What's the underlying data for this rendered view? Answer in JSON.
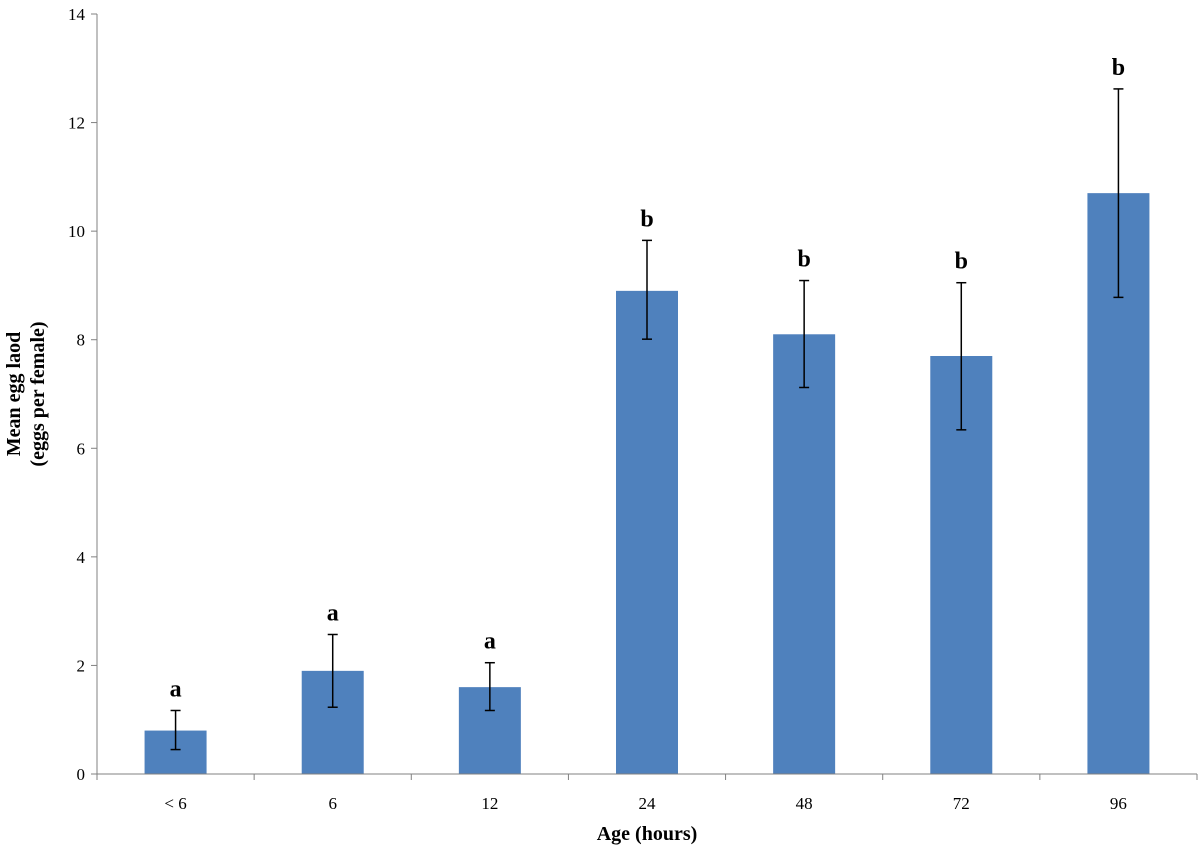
{
  "chart_data": {
    "type": "bar",
    "categories": [
      "< 6",
      "6",
      "12",
      "24",
      "48",
      "72",
      "96"
    ],
    "values": [
      0.8,
      1.9,
      1.6,
      8.9,
      8.1,
      7.7,
      10.7
    ],
    "error_upper": [
      1.17,
      2.57,
      2.05,
      9.83,
      9.09,
      9.05,
      12.62
    ],
    "error_lower": [
      0.45,
      1.23,
      1.17,
      8.01,
      7.12,
      6.34,
      8.78
    ],
    "significance_labels": [
      "a",
      "a",
      "a",
      "b",
      "b",
      "b",
      "b"
    ],
    "ylim": [
      0,
      14
    ],
    "yticks": [
      0,
      2,
      4,
      6,
      8,
      10,
      12,
      14
    ],
    "xlabel": "Age (hours)",
    "ylabel_line1": "Mean egg laod",
    "ylabel_line2": "(eggs per female)",
    "grid": false,
    "legend": "none",
    "bar_color": "#4F81BD"
  }
}
